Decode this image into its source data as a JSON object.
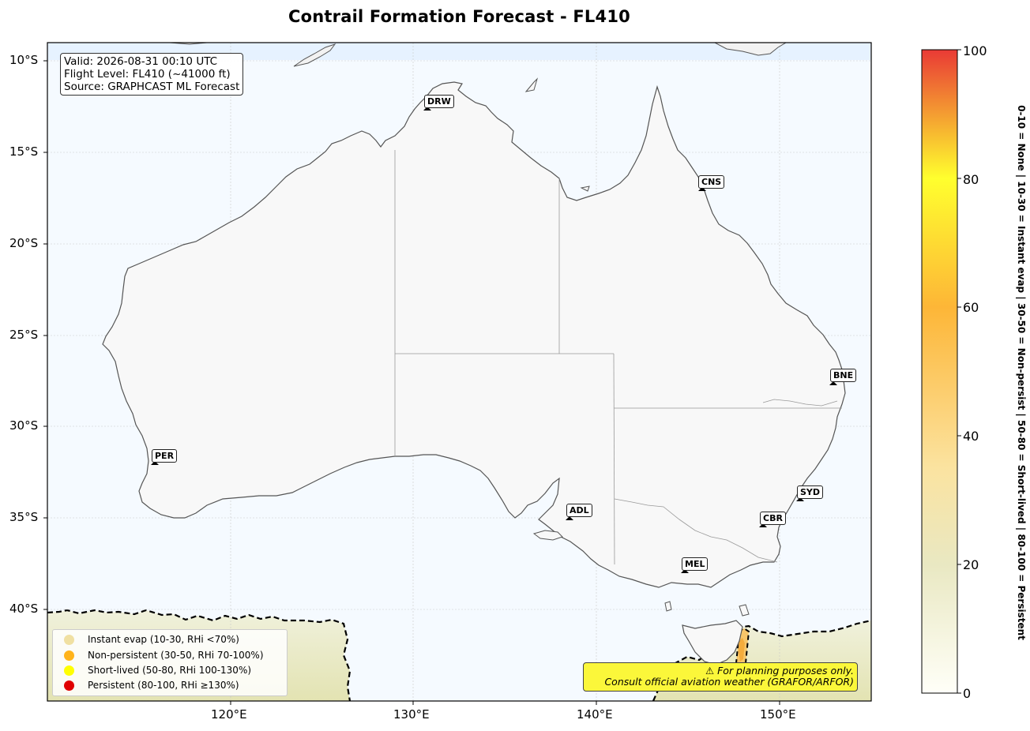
{
  "title": "Contrail Formation Forecast - FL410",
  "info": {
    "valid": "Valid: 2026-08-31 00:10 UTC",
    "flight_level": "Flight Level: FL410 (~41000 ft)",
    "source": "Source: GRAPHCAST ML Forecast"
  },
  "legend": [
    {
      "label": "Instant evap (10-30, RHi <70%)",
      "color": "#f0e0a2"
    },
    {
      "label": "Non-persistent (30-50, RHi 70-100%)",
      "color": "#ffb31a"
    },
    {
      "label": "Short-lived (50-80, RHi 100-130%)",
      "color": "#ffff00"
    },
    {
      "label": "Persistent (80-100, RHi ≥130%)",
      "color": "#e00000"
    }
  ],
  "warning": {
    "line1": "⚠ For planning purposes only.",
    "line2": "Consult official aviation weather (GRAFOR/ARFOR)"
  },
  "stations": [
    "DRW",
    "CNS",
    "BNE",
    "PER",
    "ADL",
    "SYD",
    "CBR",
    "MEL"
  ],
  "axes": {
    "lat_ticks": [
      "10°S",
      "15°S",
      "20°S",
      "25°S",
      "30°S",
      "35°S",
      "40°S"
    ],
    "lon_ticks": [
      "120°E",
      "130°E",
      "140°E",
      "150°E"
    ]
  },
  "colorbar": {
    "ticks": [
      "0",
      "20",
      "40",
      "60",
      "80",
      "100"
    ],
    "range": [
      0,
      100
    ],
    "label": "0-10 = None  |  10-30 = Instant evap  |  30-50 = Non-persist  |  50-80 = Short-lived  |  80-100 = Persistent",
    "colors": [
      "#fffff8",
      "#e9e8c2",
      "#fbe3a0",
      "#fdb637",
      "#ffff2e",
      "#e93a35"
    ]
  },
  "map_colors": {
    "ocean": "#f5faff",
    "land": "#f8f8f8",
    "coast": "#555555",
    "band": "#e6f2ff",
    "contour": "#000000"
  }
}
